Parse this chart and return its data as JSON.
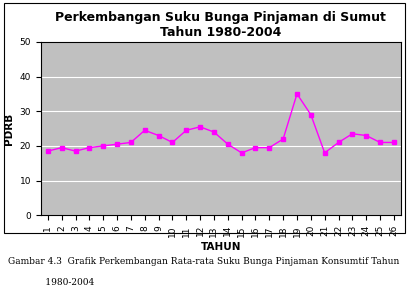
{
  "title_line1": "Perkembangan Suku Bunga Pinjaman di Sumut",
  "title_line2": "Tahun 1980-2004",
  "xlabel": "TAHUN",
  "ylabel": "PDRB",
  "x": [
    1,
    2,
    3,
    4,
    5,
    6,
    7,
    8,
    9,
    10,
    11,
    12,
    13,
    14,
    15,
    16,
    17,
    18,
    19,
    20,
    21,
    22,
    23,
    24,
    25,
    26
  ],
  "y": [
    18.5,
    19.5,
    18.5,
    19.5,
    20.0,
    20.5,
    21.0,
    24.5,
    23.0,
    21.0,
    24.5,
    25.5,
    24.0,
    20.5,
    18.0,
    19.5,
    19.5,
    22.0,
    35.0,
    29.0,
    18.0,
    21.0,
    23.5,
    23.0,
    21.0,
    21.0
  ],
  "line_color": "#FF00FF",
  "marker": "s",
  "marker_size": 3,
  "ylim": [
    0,
    50
  ],
  "xlim": [
    0.5,
    26.5
  ],
  "yticks": [
    0,
    10,
    20,
    30,
    40,
    50
  ],
  "plot_bg_color": "#C0C0C0",
  "fig_bg_color": "#FFFFFF",
  "title_fontsize": 9,
  "axis_label_fontsize": 7.5,
  "tick_fontsize": 6.5,
  "caption_line1": "Gambar 4.3  Grafik Perkembangan Rata-rata Suku Bunga Pinjaman Konsumtif Tahun",
  "caption_line2": "             1980-2004"
}
